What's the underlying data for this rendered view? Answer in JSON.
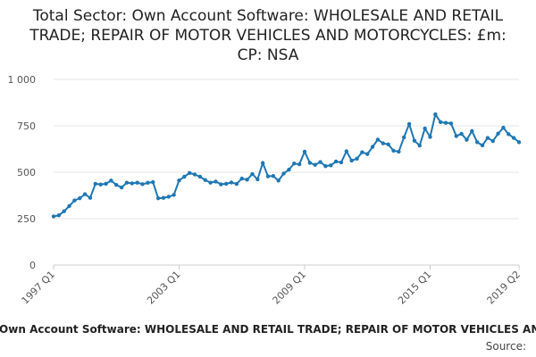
{
  "chart_data": {
    "type": "line",
    "title": "Total Sector: Own Account Software: WHOLESALE AND RETAIL TRADE; REPAIR OF MOTOR VEHICLES AND MOTORCYCLES: £m: CP: NSA",
    "series_label": "Total Sector: Own Account Software: WHOLESALE AND RETAIL TRADE; REPAIR OF MOTOR VEHICLES AND MOTORCYCLES: £m: CP: NSA",
    "source_label": "Source:",
    "line_color": "#1f77b4",
    "grid": true,
    "ylim": [
      0,
      1000
    ],
    "yticks": [
      {
        "value": 0,
        "label": "0"
      },
      {
        "value": 250,
        "label": "250"
      },
      {
        "value": 500,
        "label": "500"
      },
      {
        "value": 750,
        "label": "750"
      },
      {
        "value": 1000,
        "label": "1 000"
      }
    ],
    "xticks": [
      {
        "value": "1997 Q1",
        "label": "1997 Q1"
      },
      {
        "value": "2003 Q1",
        "label": "2003 Q1"
      },
      {
        "value": "2009 Q1",
        "label": "2009 Q1"
      },
      {
        "value": "2015 Q1",
        "label": "2015 Q1"
      },
      {
        "value": "2019 Q2",
        "label": "2019 Q2"
      }
    ],
    "x": [
      "1997 Q1",
      "1997 Q2",
      "1997 Q3",
      "1997 Q4",
      "1998 Q1",
      "1998 Q2",
      "1998 Q3",
      "1998 Q4",
      "1999 Q1",
      "1999 Q2",
      "1999 Q3",
      "1999 Q4",
      "2000 Q1",
      "2000 Q2",
      "2000 Q3",
      "2000 Q4",
      "2001 Q1",
      "2001 Q2",
      "2001 Q3",
      "2001 Q4",
      "2002 Q1",
      "2002 Q2",
      "2002 Q3",
      "2002 Q4",
      "2003 Q1",
      "2003 Q2",
      "2003 Q3",
      "2003 Q4",
      "2004 Q1",
      "2004 Q2",
      "2004 Q3",
      "2004 Q4",
      "2005 Q1",
      "2005 Q2",
      "2005 Q3",
      "2005 Q4",
      "2006 Q1",
      "2006 Q2",
      "2006 Q3",
      "2006 Q4",
      "2007 Q1",
      "2007 Q2",
      "2007 Q3",
      "2007 Q4",
      "2008 Q1",
      "2008 Q2",
      "2008 Q3",
      "2008 Q4",
      "2009 Q1",
      "2009 Q2",
      "2009 Q3",
      "2009 Q4",
      "2010 Q1",
      "2010 Q2",
      "2010 Q3",
      "2010 Q4",
      "2011 Q1",
      "2011 Q2",
      "2011 Q3",
      "2011 Q4",
      "2012 Q1",
      "2012 Q2",
      "2012 Q3",
      "2012 Q4",
      "2013 Q1",
      "2013 Q2",
      "2013 Q3",
      "2013 Q4",
      "2014 Q1",
      "2014 Q2",
      "2014 Q3",
      "2014 Q4",
      "2015 Q1",
      "2015 Q2",
      "2015 Q3",
      "2015 Q4",
      "2016 Q1",
      "2016 Q2",
      "2016 Q3",
      "2016 Q4",
      "2017 Q1",
      "2017 Q2",
      "2017 Q3",
      "2017 Q4",
      "2018 Q1",
      "2018 Q2",
      "2018 Q3",
      "2018 Q4",
      "2019 Q1",
      "2019 Q2"
    ],
    "values": [
      262,
      268,
      290,
      318,
      348,
      360,
      382,
      362,
      438,
      434,
      438,
      455,
      432,
      418,
      444,
      440,
      444,
      436,
      443,
      447,
      360,
      362,
      368,
      378,
      456,
      476,
      496,
      488,
      476,
      458,
      444,
      450,
      435,
      438,
      445,
      437,
      466,
      460,
      490,
      462,
      550,
      478,
      480,
      455,
      493,
      514,
      547,
      543,
      611,
      551,
      540,
      555,
      533,
      537,
      558,
      553,
      613,
      563,
      573,
      608,
      598,
      637,
      676,
      656,
      650,
      616,
      611,
      688,
      760,
      670,
      644,
      736,
      690,
      812,
      770,
      766,
      763,
      695,
      707,
      675,
      722,
      662,
      645,
      685,
      668,
      708,
      740,
      705,
      685,
      662
    ]
  }
}
